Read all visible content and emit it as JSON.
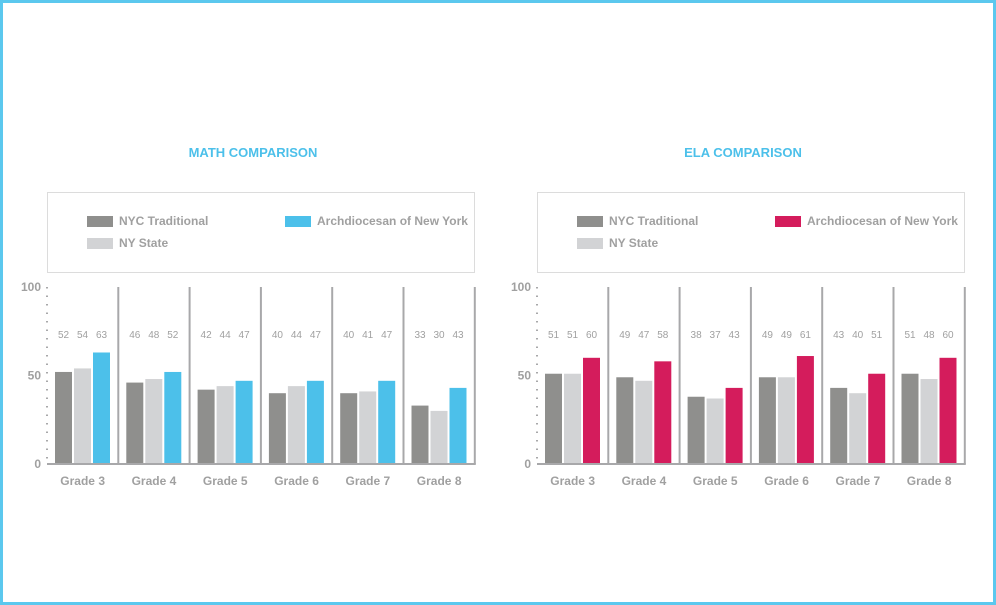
{
  "colors": {
    "nyc": "#8f8f8d",
    "state": "#d2d3d5",
    "math_arch": "#4cc0ea",
    "ela_arch": "#d41c5c",
    "text": "#a0a0a0",
    "axis": "#a8a8aa"
  },
  "chart_data": [
    {
      "type": "bar",
      "title": "MATH COMPARISON",
      "categories": [
        "Grade 3",
        "Grade 4",
        "Grade 5",
        "Grade 6",
        "Grade 7",
        "Grade 8"
      ],
      "ylim": [
        0,
        100
      ],
      "yticks": [
        "0",
        "50",
        "100"
      ],
      "legend": "top",
      "series": [
        {
          "name": "NYC Traditional",
          "values": [
            52,
            46,
            42,
            40,
            40,
            33
          ]
        },
        {
          "name": "NY State",
          "values": [
            54,
            48,
            44,
            44,
            41,
            30
          ]
        },
        {
          "name": "Archdiocesan of New York",
          "values": [
            63,
            52,
            47,
            47,
            47,
            43
          ]
        }
      ]
    },
    {
      "type": "bar",
      "title": "ELA COMPARISON",
      "categories": [
        "Grade 3",
        "Grade 4",
        "Grade 5",
        "Grade 6",
        "Grade 7",
        "Grade 8"
      ],
      "ylim": [
        0,
        100
      ],
      "yticks": [
        "0",
        "50",
        "100"
      ],
      "legend": "top",
      "series": [
        {
          "name": "NYC Traditional",
          "values": [
            51,
            49,
            38,
            49,
            43,
            51
          ]
        },
        {
          "name": "NY State",
          "values": [
            51,
            47,
            37,
            49,
            40,
            48
          ]
        },
        {
          "name": "Archdiocesan of New York",
          "values": [
            60,
            58,
            43,
            61,
            51,
            60
          ]
        }
      ]
    }
  ]
}
